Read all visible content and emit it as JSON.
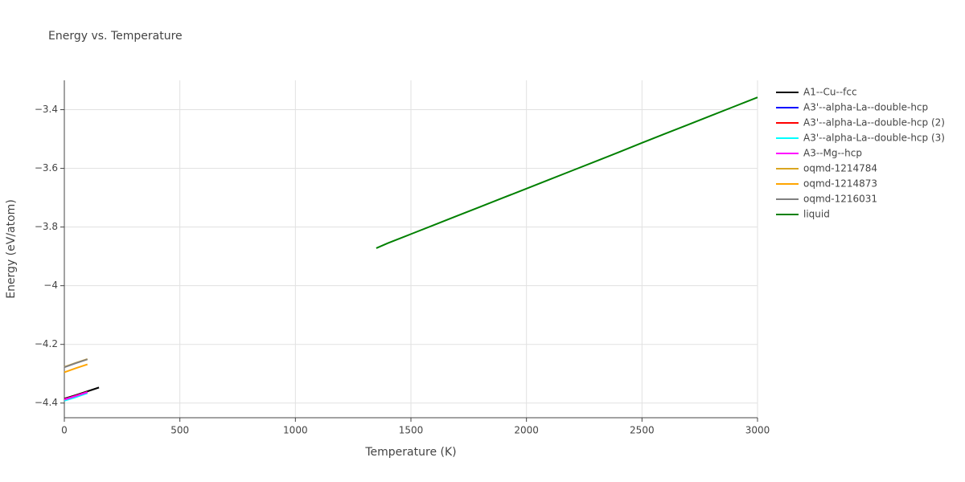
{
  "chart_data": {
    "type": "line",
    "title": "Energy vs. Temperature",
    "x_label": "Temperature (K)",
    "y_label": "Energy (eV/atom)",
    "xlim": [
      0,
      3000
    ],
    "xticks": [
      0,
      500,
      1000,
      1500,
      2000,
      2500,
      3000
    ],
    "ylim": [
      -4.45,
      -3.3
    ],
    "yticks": [
      {
        "value": -4.4,
        "label": "−4.4"
      },
      {
        "value": -4.2,
        "label": "−4.2"
      },
      {
        "value": -4,
        "label": "−4"
      },
      {
        "value": -3.8,
        "label": "−3.8"
      },
      {
        "value": -3.6,
        "label": "−3.6"
      },
      {
        "value": -3.4,
        "label": "−3.4"
      }
    ],
    "grid": true,
    "legend": "right",
    "series": [
      {
        "name": "A1--Cu--fcc",
        "color": "#000000",
        "x": [
          0,
          50,
          100,
          150
        ],
        "values": [
          -4.385,
          -4.373,
          -4.36,
          -4.347
        ]
      },
      {
        "name": "A3'--alpha-La--double-hcp",
        "color": "#0000ff",
        "x": [
          0,
          50,
          100
        ],
        "values": [
          -4.387,
          -4.375,
          -4.362
        ]
      },
      {
        "name": "A3'--alpha-La--double-hcp (2)",
        "color": "#ff0000",
        "x": [
          0,
          50,
          100
        ],
        "values": [
          -4.387,
          -4.375,
          -4.362
        ]
      },
      {
        "name": "A3'--alpha-La--double-hcp (3)",
        "color": "#00ffff",
        "x": [
          0,
          50,
          100
        ],
        "values": [
          -4.392,
          -4.38,
          -4.366
        ]
      },
      {
        "name": "A3--Mg--hcp",
        "color": "#ff00ff",
        "x": [
          0,
          50,
          100
        ],
        "values": [
          -4.388,
          -4.376,
          -4.363
        ]
      },
      {
        "name": "oqmd-1214784",
        "color": "#daa520",
        "x": [
          0,
          50,
          100
        ],
        "values": [
          -4.277,
          -4.263,
          -4.25
        ]
      },
      {
        "name": "oqmd-1214873",
        "color": "#ffa500",
        "x": [
          0,
          50,
          100
        ],
        "values": [
          -4.295,
          -4.281,
          -4.268
        ]
      },
      {
        "name": "oqmd-1216031",
        "color": "#808080",
        "x": [
          0,
          50,
          100
        ],
        "values": [
          -4.278,
          -4.264,
          -4.251
        ]
      },
      {
        "name": "liquid",
        "color": "#008000",
        "x": [
          1350,
          1400,
          1500,
          1600,
          1700,
          1800,
          1900,
          2000,
          2100,
          2200,
          2300,
          2400,
          2500,
          2600,
          2700,
          2800,
          2900,
          3000
        ],
        "values": [
          -3.872,
          -3.855,
          -3.824,
          -3.793,
          -3.762,
          -3.731,
          -3.7,
          -3.669,
          -3.638,
          -3.607,
          -3.576,
          -3.545,
          -3.513,
          -3.482,
          -3.451,
          -3.42,
          -3.389,
          -3.358
        ]
      }
    ]
  }
}
